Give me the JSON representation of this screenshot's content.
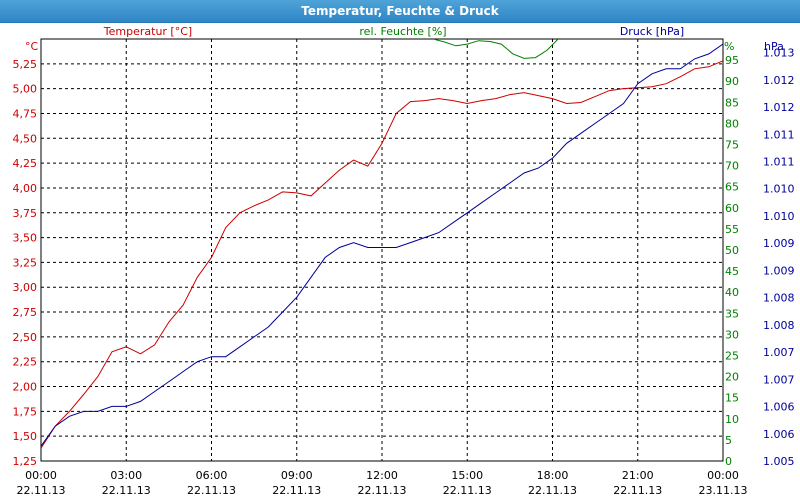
{
  "window": {
    "title": "Temperatur, Feuchte & Druck"
  },
  "colors": {
    "temperature": "#cc0000",
    "humidity": "#008000",
    "pressure": "#000099",
    "grid": "#000000",
    "titlebar": "#3a8fd0"
  },
  "chart_data": {
    "type": "line",
    "title": "Temperatur, Feuchte & Druck",
    "grid": true,
    "x": {
      "ticks": [
        {
          "time": "00:00",
          "date": "22.11.13"
        },
        {
          "time": "03:00",
          "date": "22.11.13"
        },
        {
          "time": "06:00",
          "date": "22.11.13"
        },
        {
          "time": "09:00",
          "date": "22.11.13"
        },
        {
          "time": "12:00",
          "date": "22.11.13"
        },
        {
          "time": "15:00",
          "date": "22.11.13"
        },
        {
          "time": "18:00",
          "date": "22.11.13"
        },
        {
          "time": "21:00",
          "date": "22.11.13"
        },
        {
          "time": "00:00",
          "date": "23.11.13"
        }
      ]
    },
    "axes": {
      "left": {
        "label": "Temperatur [°C]",
        "unit": "°C",
        "min": 1.25,
        "max": 5.5,
        "ticks": [
          "1,25",
          "1,50",
          "1,75",
          "2,00",
          "2,25",
          "2,50",
          "2,75",
          "3,00",
          "3,25",
          "3,50",
          "3,75",
          "4,00",
          "4,25",
          "4,50",
          "4,75",
          "5,00",
          "5,25"
        ]
      },
      "mid": {
        "label": "rel. Feuchte [%]",
        "unit": "%",
        "min": 0,
        "max": 100,
        "ticks": [
          "0",
          "5",
          "10",
          "15",
          "20",
          "25",
          "30",
          "35",
          "40",
          "45",
          "50",
          "55",
          "60",
          "65",
          "70",
          "75",
          "80",
          "85",
          "90",
          "95"
        ]
      },
      "right": {
        "label": "Druck [hPa]",
        "unit": "hPa",
        "min": 1.005,
        "max": 1.0135,
        "ticks": [
          "1.005",
          "1.006",
          "1.006",
          "1.007",
          "1.007",
          "1.008",
          "1.008",
          "1.009",
          "1.009",
          "1.010",
          "1.010",
          "1.011",
          "1.011",
          "1.012",
          "1.012",
          "1.013"
        ]
      }
    },
    "series": [
      {
        "name": "Temperatur [°C]",
        "axis": "left",
        "x": [
          0,
          0.5,
          1,
          1.5,
          2,
          2.5,
          3,
          3.5,
          4,
          4.5,
          5,
          5.5,
          6,
          6.5,
          7,
          7.5,
          8,
          8.5,
          9,
          9.5,
          10,
          10.5,
          11,
          11.5,
          12,
          12.5,
          13,
          13.5,
          14,
          14.5,
          15,
          15.5,
          16,
          16.5,
          17,
          17.5,
          18,
          18.5,
          19,
          19.5,
          20,
          20.5,
          21,
          21.5,
          22,
          22.5,
          23,
          23.5,
          24
        ],
        "y": [
          1.38,
          1.6,
          1.75,
          1.92,
          2.1,
          2.35,
          2.4,
          2.33,
          2.42,
          2.65,
          2.82,
          3.1,
          3.3,
          3.6,
          3.75,
          3.82,
          3.88,
          3.96,
          3.95,
          3.92,
          4.05,
          4.18,
          4.28,
          4.22,
          4.45,
          4.75,
          4.87,
          4.88,
          4.9,
          4.88,
          4.85,
          4.88,
          4.9,
          4.94,
          4.96,
          4.93,
          4.9,
          4.85,
          4.86,
          4.92,
          4.98,
          5.0,
          5.01,
          5.02,
          5.05,
          5.12,
          5.2,
          5.22,
          5.28
        ]
      },
      {
        "name": "rel. Feuchte [%]",
        "axis": "mid",
        "x": [
          13.8,
          14.2,
          14.6,
          15.0,
          15.4,
          15.8,
          16.2,
          16.6,
          17.0,
          17.4,
          17.8,
          18.2
        ],
        "y": [
          100,
          99.3,
          98.4,
          98.8,
          99.6,
          99.4,
          98.8,
          96.5,
          95.4,
          95.6,
          97.3,
          100
        ]
      },
      {
        "name": "Druck [hPa]",
        "axis": "right",
        "x": [
          0,
          0.5,
          1,
          1.5,
          2,
          2.5,
          3,
          3.5,
          4,
          4.5,
          5,
          5.5,
          6,
          6.5,
          7,
          7.5,
          8,
          8.5,
          9,
          9.5,
          10,
          10.5,
          11,
          11.5,
          12,
          12.5,
          13,
          13.5,
          14,
          14.5,
          15,
          15.5,
          16,
          16.5,
          17,
          17.5,
          18,
          18.5,
          19,
          19.5,
          20,
          20.5,
          21,
          21.5,
          22,
          22.5,
          23,
          23.5,
          24
        ],
        "y": [
          1.0053,
          1.0057,
          1.0059,
          1.006,
          1.006,
          1.0061,
          1.0061,
          1.0062,
          1.0064,
          1.0066,
          1.0068,
          1.007,
          1.0071,
          1.0071,
          1.0073,
          1.0075,
          1.0077,
          1.008,
          1.0083,
          1.0087,
          1.0091,
          1.0093,
          1.0094,
          1.0093,
          1.0093,
          1.0093,
          1.0094,
          1.0095,
          1.0096,
          1.0098,
          1.01,
          1.0102,
          1.0104,
          1.0106,
          1.0108,
          1.0109,
          1.0111,
          1.0114,
          1.0116,
          1.0118,
          1.012,
          1.0122,
          1.0126,
          1.0128,
          1.0129,
          1.0129,
          1.0131,
          1.0132,
          1.0134
        ]
      }
    ]
  }
}
